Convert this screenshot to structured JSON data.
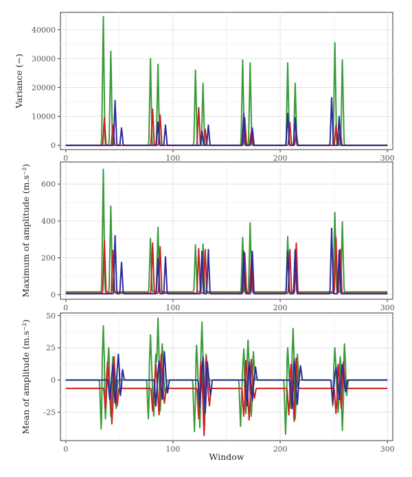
{
  "chart_data": [
    {
      "type": "line",
      "ylabel": "Variance (−)",
      "xlabel": "",
      "xlim": [
        -5,
        305
      ],
      "ylim": [
        -1500,
        46000
      ],
      "xticks": [
        "0",
        "100",
        "200",
        "300"
      ],
      "yticks": [
        "0",
        "10000",
        "20000",
        "30000",
        "40000"
      ],
      "ytick_values": [
        0,
        10000,
        20000,
        30000,
        40000
      ],
      "grid": true,
      "baseline": {
        "green": 0,
        "red": 0,
        "blue": 0
      },
      "series": [
        {
          "color": "#3a9a3a",
          "values": [
            [
              35,
              44500
            ],
            [
              42,
              32500
            ],
            [
              79,
              30000
            ],
            [
              86,
              28000
            ],
            [
              121,
              26000
            ],
            [
              128,
              21500
            ],
            [
              165,
              29500
            ],
            [
              172,
              28500
            ],
            [
              207,
              28500
            ],
            [
              214,
              21500
            ],
            [
              251,
              35500
            ],
            [
              258,
              29500
            ]
          ]
        },
        {
          "color": "#cc2222",
          "values": [
            [
              36,
              9500
            ],
            [
              44,
              7000
            ],
            [
              81,
              12500
            ],
            [
              88,
              10500
            ],
            [
              124,
              13000
            ],
            [
              130,
              5500
            ],
            [
              167,
              9500
            ],
            [
              173,
              4500
            ],
            [
              209,
              8000
            ],
            [
              215,
              4500
            ],
            [
              252,
              7000
            ],
            [
              256,
              5500
            ]
          ]
        },
        {
          "color": "#2a2a9a",
          "values": [
            [
              46,
              15500
            ],
            [
              52,
              6000
            ],
            [
              86,
              8000
            ],
            [
              93,
              7000
            ],
            [
              127,
              5000
            ],
            [
              133,
              7000
            ],
            [
              166,
              11000
            ],
            [
              174,
              6000
            ],
            [
              207,
              11000
            ],
            [
              214,
              9500
            ],
            [
              248,
              16500
            ],
            [
              255,
              10000
            ]
          ]
        }
      ]
    },
    {
      "type": "line",
      "ylabel": "Maximum of amplitude (m.s⁻²)",
      "xlabel": "",
      "xlim": [
        -5,
        305
      ],
      "ylim": [
        -25,
        720
      ],
      "xticks": [
        "0",
        "100",
        "200",
        "300"
      ],
      "yticks": [
        "0",
        "200",
        "400",
        "600"
      ],
      "ytick_values": [
        0,
        200,
        400,
        600
      ],
      "grid": true,
      "baseline": {
        "green": 15,
        "red": 8,
        "blue": 5
      },
      "series": [
        {
          "color": "#3a9a3a",
          "values": [
            [
              35,
              680
            ],
            [
              42,
              480
            ],
            [
              79,
              305
            ],
            [
              86,
              365
            ],
            [
              121,
              270
            ],
            [
              128,
              275
            ],
            [
              165,
              310
            ],
            [
              172,
              390
            ],
            [
              207,
              315
            ],
            [
              214,
              245
            ],
            [
              251,
              445
            ],
            [
              258,
              395
            ]
          ]
        },
        {
          "color": "#cc2222",
          "values": [
            [
              36,
              295
            ],
            [
              44,
              240
            ],
            [
              81,
              280
            ],
            [
              88,
              260
            ],
            [
              124,
              250
            ],
            [
              130,
              245
            ],
            [
              167,
              225
            ],
            [
              173,
              185
            ],
            [
              209,
              245
            ],
            [
              215,
              280
            ],
            [
              252,
              310
            ],
            [
              256,
              245
            ]
          ]
        },
        {
          "color": "#2a2a9a",
          "values": [
            [
              46,
              320
            ],
            [
              52,
              175
            ],
            [
              86,
              195
            ],
            [
              93,
              205
            ],
            [
              127,
              235
            ],
            [
              133,
              245
            ],
            [
              166,
              235
            ],
            [
              174,
              235
            ],
            [
              207,
              235
            ],
            [
              214,
              240
            ],
            [
              248,
              360
            ],
            [
              255,
              240
            ]
          ]
        }
      ]
    },
    {
      "type": "line",
      "ylabel": "Mean of amplitude (m.s⁻²)",
      "xlabel": "Window",
      "xlim": [
        -5,
        305
      ],
      "ylim": [
        -47,
        52
      ],
      "xticks": [
        "0",
        "100",
        "200",
        "300"
      ],
      "yticks": [
        "-25",
        "0",
        "25",
        "50"
      ],
      "ytick_values": [
        -25,
        0,
        25,
        50
      ],
      "grid": true,
      "baseline": {
        "green": 0,
        "red": -6.5,
        "blue": 0
      },
      "series": [
        {
          "color": "#3a9a3a",
          "values": [
            [
              33,
              -38
            ],
            [
              35,
              42
            ],
            [
              37,
              -30
            ],
            [
              40,
              25
            ],
            [
              42,
              -28
            ],
            [
              44,
              18
            ],
            [
              47,
              -22
            ],
            [
              77,
              -30
            ],
            [
              79,
              35
            ],
            [
              82,
              -28
            ],
            [
              84,
              20
            ],
            [
              86,
              48
            ],
            [
              88,
              -24
            ],
            [
              90,
              28
            ],
            [
              93,
              -12
            ],
            [
              120,
              -40
            ],
            [
              122,
              27
            ],
            [
              125,
              -37
            ],
            [
              127,
              45
            ],
            [
              129,
              -40
            ],
            [
              131,
              20
            ],
            [
              163,
              -36
            ],
            [
              166,
              24
            ],
            [
              168,
              -26
            ],
            [
              170,
              31
            ],
            [
              173,
              -28
            ],
            [
              175,
              22
            ],
            [
              205,
              -42
            ],
            [
              207,
              25
            ],
            [
              210,
              -22
            ],
            [
              212,
              40
            ],
            [
              214,
              -30
            ],
            [
              216,
              20
            ],
            [
              249,
              -20
            ],
            [
              251,
              25
            ],
            [
              254,
              -25
            ],
            [
              256,
              18
            ],
            [
              258,
              -39
            ],
            [
              260,
              28
            ],
            [
              262,
              -12
            ]
          ]
        },
        {
          "color": "#cc2222",
          "values": [
            [
              37,
              -22
            ],
            [
              39,
              14
            ],
            [
              43,
              -34
            ],
            [
              45,
              18
            ],
            [
              48,
              -20
            ],
            [
              81,
              -24
            ],
            [
              84,
              12
            ],
            [
              87,
              -27
            ],
            [
              89,
              20
            ],
            [
              92,
              -18
            ],
            [
              124,
              -30
            ],
            [
              126,
              14
            ],
            [
              129,
              -43
            ],
            [
              131,
              18
            ],
            [
              134,
              -20
            ],
            [
              166,
              -28
            ],
            [
              168,
              15
            ],
            [
              171,
              -31
            ],
            [
              173,
              16
            ],
            [
              176,
              -14
            ],
            [
              208,
              -27
            ],
            [
              210,
              12
            ],
            [
              213,
              -32
            ],
            [
              215,
              17
            ],
            [
              252,
              -26
            ],
            [
              254,
              12
            ],
            [
              257,
              -22
            ],
            [
              259,
              14
            ]
          ]
        },
        {
          "color": "#2a2a9a",
          "values": [
            [
              41,
              -15
            ],
            [
              44,
              12
            ],
            [
              46,
              -18
            ],
            [
              49,
              20
            ],
            [
              51,
              -12
            ],
            [
              53,
              8
            ],
            [
              84,
              -20
            ],
            [
              87,
              15
            ],
            [
              90,
              -15
            ],
            [
              92,
              22
            ],
            [
              95,
              -10
            ],
            [
              125,
              -20
            ],
            [
              128,
              18
            ],
            [
              130,
              -26
            ],
            [
              132,
              14
            ],
            [
              135,
              -12
            ],
            [
              169,
              -20
            ],
            [
              171,
              14
            ],
            [
              174,
              -16
            ],
            [
              177,
              10
            ],
            [
              211,
              -22
            ],
            [
              213,
              16
            ],
            [
              216,
              -19
            ],
            [
              219,
              11
            ],
            [
              249,
              -18
            ],
            [
              252,
              10
            ],
            [
              255,
              -15
            ],
            [
              258,
              12
            ],
            [
              261,
              -9
            ]
          ]
        }
      ]
    }
  ]
}
